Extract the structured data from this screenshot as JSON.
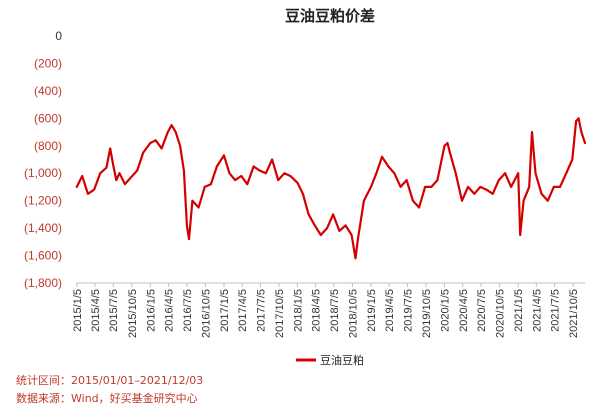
{
  "chart_data": {
    "type": "line",
    "title": "豆油豆粕价差",
    "xlabel": "",
    "ylabel": "",
    "ylim": [
      -1800,
      0
    ],
    "yticks": [
      0,
      -200,
      -400,
      -600,
      -800,
      -1000,
      -1200,
      -1400,
      -1600,
      -1800
    ],
    "ytick_labels": [
      "0",
      "(200)",
      "(400)",
      "(600)",
      "(800)",
      "(1,000)",
      "(1,200)",
      "(1,400)",
      "(1,600)",
      "(1,800)"
    ],
    "x_range": [
      "2015/01/01",
      "2021/12/03"
    ],
    "xtick_labels": [
      "2015/1/5",
      "2015/4/5",
      "2015/7/5",
      "2015/10/5",
      "2016/1/5",
      "2016/4/5",
      "2016/7/5",
      "2016/10/5",
      "2017/1/5",
      "2017/4/5",
      "2017/7/5",
      "2017/10/5",
      "2018/1/5",
      "2018/4/5",
      "2018/7/5",
      "2018/10/5",
      "2019/1/5",
      "2019/4/5",
      "2019/7/5",
      "2019/10/5",
      "2020/1/5",
      "2020/4/5",
      "2020/7/5",
      "2020/10/5",
      "2021/1/5",
      "2021/4/5",
      "2021/7/5",
      "2021/10/5"
    ],
    "grid": false,
    "legend": "bottom",
    "series": [
      {
        "name": "豆油豆粕",
        "color": "#d40000",
        "x": [
          "2015/01/05",
          "2015/02/01",
          "2015/03/01",
          "2015/04/01",
          "2015/05/01",
          "2015/06/01",
          "2015/06/20",
          "2015/07/05",
          "2015/07/20",
          "2015/08/05",
          "2015/09/01",
          "2015/10/01",
          "2015/11/01",
          "2015/12/01",
          "2016/01/05",
          "2016/02/01",
          "2016/03/01",
          "2016/04/01",
          "2016/04/20",
          "2016/05/10",
          "2016/06/01",
          "2016/06/20",
          "2016/07/05",
          "2016/07/15",
          "2016/08/01",
          "2016/09/01",
          "2016/10/01",
          "2016/11/01",
          "2016/12/01",
          "2017/01/05",
          "2017/02/01",
          "2017/03/01",
          "2017/04/01",
          "2017/05/01",
          "2017/06/01",
          "2017/07/01",
          "2017/08/01",
          "2017/09/01",
          "2017/10/01",
          "2017/11/01",
          "2017/12/01",
          "2018/01/05",
          "2018/02/01",
          "2018/03/01",
          "2018/04/01",
          "2018/05/01",
          "2018/06/01",
          "2018/07/01",
          "2018/08/01",
          "2018/09/01",
          "2018/10/01",
          "2018/10/20",
          "2018/11/01",
          "2018/12/01",
          "2019/01/05",
          "2019/02/01",
          "2019/03/01",
          "2019/04/01",
          "2019/05/01",
          "2019/06/01",
          "2019/07/01",
          "2019/08/01",
          "2019/09/01",
          "2019/10/01",
          "2019/11/01",
          "2019/12/01",
          "2020/01/05",
          "2020/01/20",
          "2020/02/01",
          "2020/03/01",
          "2020/04/01",
          "2020/05/01",
          "2020/06/01",
          "2020/07/01",
          "2020/08/01",
          "2020/09/01",
          "2020/10/01",
          "2020/11/01",
          "2020/12/01",
          "2021/01/05",
          "2021/01/15",
          "2021/02/01",
          "2021/03/01",
          "2021/03/15",
          "2021/04/01",
          "2021/05/01",
          "2021/06/01",
          "2021/07/01",
          "2021/08/01",
          "2021/09/01",
          "2021/10/01",
          "2021/10/20",
          "2021/11/01",
          "2021/11/15",
          "2021/12/03"
        ],
        "y": [
          -1100,
          -1020,
          -1150,
          -1120,
          -1000,
          -960,
          -820,
          -940,
          -1050,
          -1000,
          -1080,
          -1030,
          -980,
          -850,
          -780,
          -760,
          -820,
          -700,
          -650,
          -700,
          -800,
          -980,
          -1380,
          -1480,
          -1200,
          -1250,
          -1100,
          -1080,
          -950,
          -870,
          -1000,
          -1050,
          -1020,
          -1080,
          -950,
          -980,
          -1000,
          -900,
          -1050,
          -1000,
          -1020,
          -1070,
          -1150,
          -1300,
          -1380,
          -1450,
          -1400,
          -1300,
          -1420,
          -1380,
          -1450,
          -1620,
          -1480,
          -1200,
          -1100,
          -1000,
          -880,
          -950,
          -1000,
          -1100,
          -1050,
          -1200,
          -1250,
          -1100,
          -1100,
          -1050,
          -800,
          -780,
          -850,
          -1000,
          -1200,
          -1100,
          -1150,
          -1100,
          -1120,
          -1150,
          -1050,
          -1000,
          -1100,
          -1000,
          -1450,
          -1200,
          -1100,
          -700,
          -1000,
          -1150,
          -1200,
          -1100,
          -1100,
          -1000,
          -900,
          -620,
          -600,
          -700,
          -780
        ]
      }
    ]
  },
  "legend_label": "豆油豆粕",
  "footnotes": {
    "range": "统计区间：2015/01/01–2021/12/03",
    "source": "数据来源：Wind，好买基金研究中心"
  }
}
